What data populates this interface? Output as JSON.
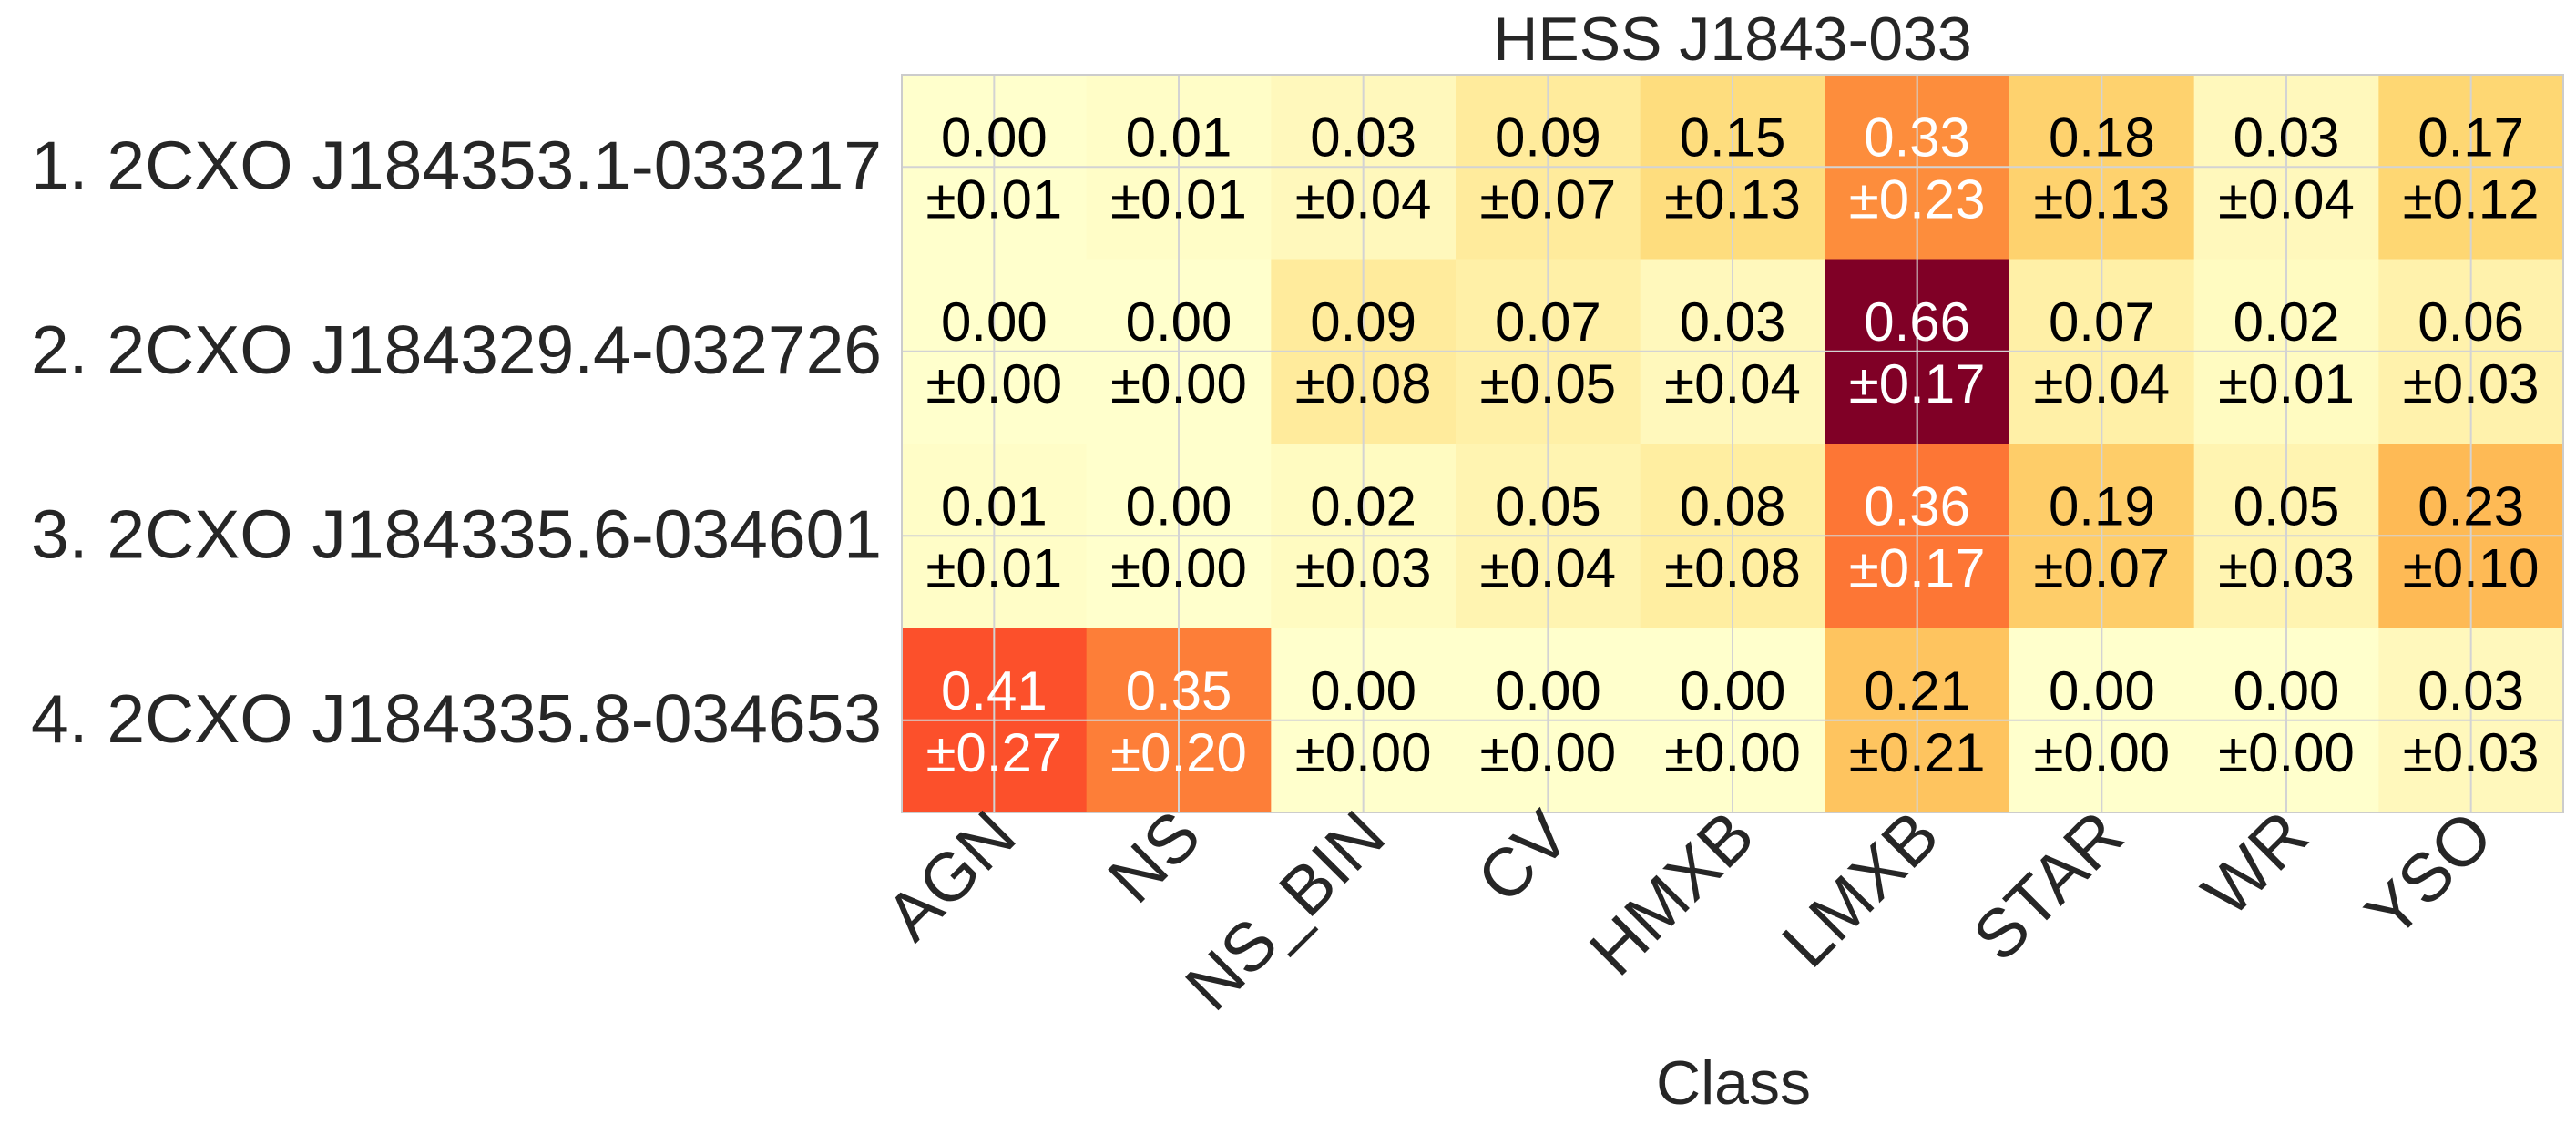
{
  "chart_data": {
    "type": "heatmap",
    "title": "HESS J1843-033",
    "xlabel": "Class",
    "ylabel": "",
    "categories": [
      "AGN",
      "NS",
      "NS_BIN",
      "CV",
      "HMXB",
      "LMXB",
      "STAR",
      "WR",
      "YSO"
    ],
    "rows": [
      "1.  2CXO J184353.1-033217",
      "2.  2CXO J184329.4-032726",
      "3.  2CXO J184335.6-034601",
      "4.  2CXO J184335.8-034653"
    ],
    "values": [
      [
        0.0,
        0.01,
        0.03,
        0.09,
        0.15,
        0.33,
        0.18,
        0.03,
        0.17
      ],
      [
        0.0,
        0.0,
        0.09,
        0.07,
        0.03,
        0.66,
        0.07,
        0.02,
        0.06
      ],
      [
        0.01,
        0.0,
        0.02,
        0.05,
        0.08,
        0.36,
        0.19,
        0.05,
        0.23
      ],
      [
        0.41,
        0.35,
        0.0,
        0.0,
        0.0,
        0.21,
        0.0,
        0.0,
        0.03
      ]
    ],
    "errors": [
      [
        0.01,
        0.01,
        0.04,
        0.07,
        0.13,
        0.23,
        0.13,
        0.04,
        0.12
      ],
      [
        0.0,
        0.0,
        0.08,
        0.05,
        0.04,
        0.17,
        0.04,
        0.01,
        0.03
      ],
      [
        0.01,
        0.0,
        0.03,
        0.04,
        0.08,
        0.17,
        0.07,
        0.03,
        0.1
      ],
      [
        0.27,
        0.2,
        0.0,
        0.0,
        0.0,
        0.21,
        0.0,
        0.0,
        0.03
      ]
    ],
    "colormap": "YlOrRd",
    "vmin": 0,
    "vmax": 0.66,
    "grid": true,
    "colors": {
      "grid": "#d3d3d3",
      "text_dark": "#000000",
      "text_light": "#ffffff",
      "label": "#262626"
    }
  }
}
